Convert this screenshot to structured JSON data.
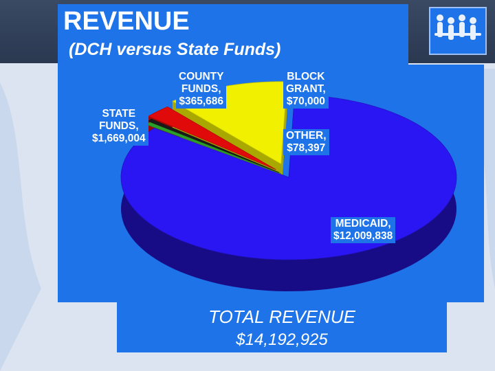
{
  "slide": {
    "title": "REVENUE",
    "subtitle": "(DCH versus State Funds)",
    "total_label": "TOTAL REVENUE",
    "total_value": "$14,192,925"
  },
  "icons": {
    "logo": "people-group-logo"
  },
  "colors": {
    "accent_blue": "#1e73e8",
    "medicaid": "#2a16f2",
    "state_funds": "#f0f000",
    "county_funds": "#e00a0a",
    "block_grant": "#1a1a1a",
    "other": "#2aa02a"
  },
  "chart_data": {
    "type": "pie",
    "style": "3d-exploded",
    "title": "REVENUE",
    "subtitle": "(DCH versus State Funds)",
    "slices": [
      {
        "name": "MEDICAID",
        "value": 12009838,
        "label_value": "$12,009,838",
        "label_name": "MEDICAID,",
        "color": "#2a16f2"
      },
      {
        "name": "OTHER",
        "value": 78397,
        "label_value": "$78,397",
        "label_name": "OTHER,",
        "color": "#2aa02a"
      },
      {
        "name": "BLOCK GRANT",
        "value": 70000,
        "label_value": "$70,000",
        "label_name": [
          "BLOCK",
          "GRANT,"
        ],
        "color": "#1a1a1a"
      },
      {
        "name": "COUNTY FUNDS",
        "value": 365686,
        "label_value": "$365,686",
        "label_name": [
          "COUNTY",
          "FUNDS,"
        ],
        "color": "#e00a0a"
      },
      {
        "name": "STATE FUNDS",
        "value": 1669004,
        "label_value": "$1,669,004",
        "label_name": [
          "STATE",
          "FUNDS,"
        ],
        "color": "#f0f000"
      }
    ],
    "total": 14192925
  }
}
